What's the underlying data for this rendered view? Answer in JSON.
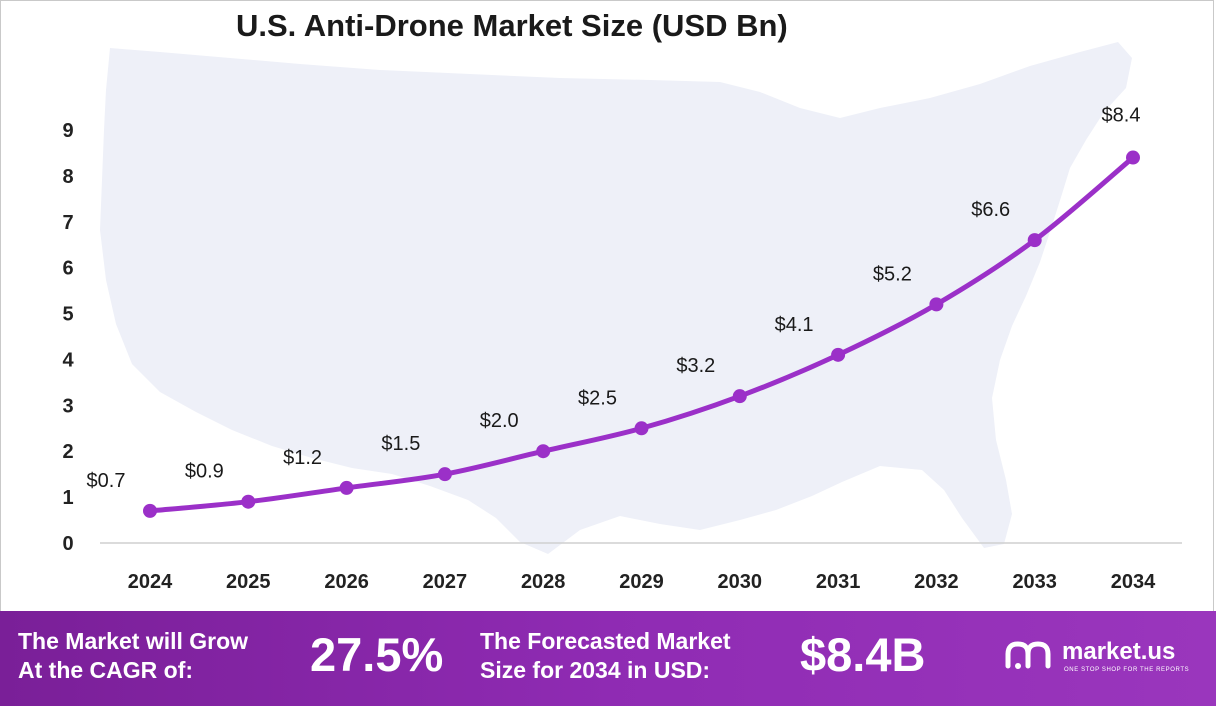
{
  "chart_data": {
    "type": "line",
    "title": "U.S. Anti-Drone Market Size (USD Bn)",
    "x": [
      "2024",
      "2025",
      "2026",
      "2027",
      "2028",
      "2029",
      "2030",
      "2031",
      "2032",
      "2033",
      "2034"
    ],
    "values": [
      0.7,
      0.9,
      1.2,
      1.5,
      2.0,
      2.5,
      3.2,
      4.1,
      5.2,
      6.6,
      8.4
    ],
    "data_labels": [
      "$0.7",
      "$0.9",
      "$1.2",
      "$1.5",
      "$2.0",
      "$2.5",
      "$3.2",
      "$4.1",
      "$5.2",
      "$6.6",
      "$8.4"
    ],
    "yticks": [
      "0",
      "1",
      "2",
      "3",
      "4",
      "5",
      "6",
      "7",
      "8",
      "9"
    ],
    "ylim": [
      0,
      9
    ],
    "grid": false,
    "line_color": "#9b30c8",
    "background_map": "united-states-map-silhouette"
  },
  "footer": {
    "cagr_label_line1": "The Market will Grow",
    "cagr_label_line2": "At the CAGR of:",
    "cagr_value": "27.5%",
    "forecast_label_line1": "The Forecasted Market",
    "forecast_label_line2": "Size for 2034 in USD:",
    "forecast_value": "$8.4B",
    "background_color": "#8a27ad"
  },
  "logo": {
    "name": "market.us",
    "tagline": "ONE STOP SHOP FOR THE REPORTS"
  }
}
